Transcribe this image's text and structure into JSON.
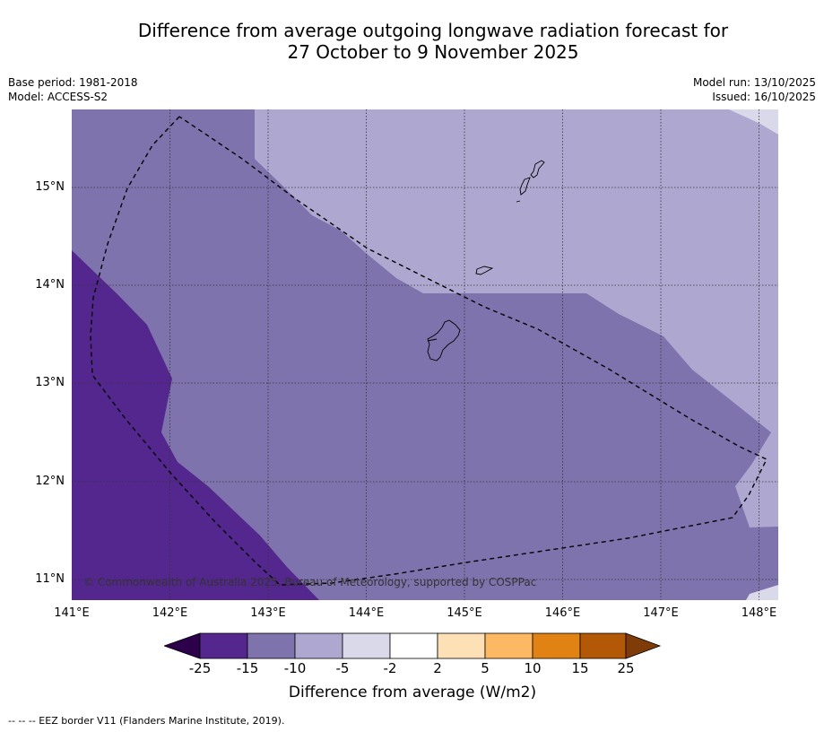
{
  "title": {
    "line1": "Difference from average outgoing longwave radiation forecast for",
    "line2": "27 October to 9 November 2025"
  },
  "meta": {
    "base_period": "Base period: 1981-2018",
    "model": "Model: ACCESS-S2",
    "model_run": "Model run: 13/10/2025",
    "issued": "Issued: 16/10/2025"
  },
  "map": {
    "lat_labels": [
      "15°N",
      "14°N",
      "13°N",
      "12°N",
      "11°N"
    ],
    "lon_labels": [
      "141°E",
      "142°E",
      "143°E",
      "144°E",
      "145°E",
      "146°E",
      "147°E",
      "148°E"
    ],
    "copyright": "© Commonwealth of Australia 2025, Bureau of Meteorology, supported by COSPPac",
    "fill_colors": {
      "strong_negative": "#54278f",
      "moderate_negative": "#7f73ad",
      "weak_negative": "#aea8d1",
      "slight_negative": "#d9d9ea"
    }
  },
  "colorbar": {
    "ticks": [
      "-25",
      "-15",
      "-10",
      "-5",
      "-2",
      "2",
      "5",
      "10",
      "15",
      "25"
    ],
    "colors": [
      "#2d004b",
      "#54278f",
      "#7f73ad",
      "#aea8d1",
      "#d9d9ea",
      "#ffffff",
      "#fee0b6",
      "#fdb863",
      "#e08214",
      "#b35806",
      "#7f3b08"
    ],
    "label": "Difference from average (W/m2)"
  },
  "footnote": "--  --  -- EEZ border V11 (Flanders Marine Institute, 2019)."
}
